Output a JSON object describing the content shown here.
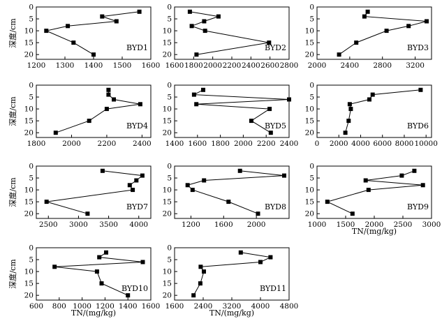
{
  "shared": {
    "ylabel": "深度/cm",
    "xlabel": "TN/(mg/kg)",
    "yticks": [
      0,
      5,
      10,
      15,
      20
    ],
    "ylim": [
      0,
      22
    ],
    "depths": [
      2,
      4,
      6,
      8,
      10,
      15,
      20
    ]
  },
  "chart_data": [
    {
      "type": "line",
      "label": "BYD1",
      "xlim": [
        1200,
        1600
      ],
      "xticks": [
        1200,
        1300,
        1400,
        1500,
        1600
      ],
      "x": [
        1560,
        1430,
        1480,
        1310,
        1235,
        1330,
        1400
      ],
      "y": [
        2,
        4,
        6,
        8,
        10,
        15,
        20
      ]
    },
    {
      "type": "line",
      "label": "BYD2",
      "xlim": [
        1600,
        2800
      ],
      "xticks": [
        1600,
        1800,
        2000,
        2200,
        2400,
        2600,
        2800
      ],
      "x": [
        1760,
        2060,
        1910,
        1780,
        1920,
        2590,
        1830
      ],
      "y": [
        2,
        4,
        6,
        8,
        10,
        15,
        20
      ]
    },
    {
      "type": "line",
      "label": "BYD3",
      "xlim": [
        2000,
        3400
      ],
      "xticks": [
        2000,
        2400,
        2800,
        3200
      ],
      "x": [
        2620,
        2580,
        3340,
        3120,
        2850,
        2480,
        2270
      ],
      "y": [
        2,
        4,
        6,
        8,
        10,
        15,
        20
      ]
    },
    {
      "type": "line",
      "label": "BYD4",
      "xlim": [
        1800,
        2450
      ],
      "xticks": [
        1800,
        2000,
        2200,
        2400
      ],
      "x": [
        2210,
        2210,
        2240,
        2390,
        2200,
        2100,
        1910
      ],
      "y": [
        2,
        4,
        6,
        8,
        10,
        15,
        20
      ]
    },
    {
      "type": "line",
      "label": "BYD5",
      "xlim": [
        1400,
        2400
      ],
      "xticks": [
        1400,
        1600,
        1800,
        2000,
        2200,
        2400
      ],
      "x": [
        1650,
        1570,
        2400,
        1590,
        2230,
        2070,
        2240
      ],
      "y": [
        2,
        4,
        6,
        8,
        10,
        15,
        20
      ]
    },
    {
      "type": "line",
      "label": "BYD6",
      "xlim": [
        0,
        10500
      ],
      "xticks": [
        0,
        2000,
        4000,
        6000,
        8000,
        10000
      ],
      "x": [
        9500,
        5100,
        4800,
        3000,
        3100,
        2900,
        2600
      ],
      "y": [
        2,
        4,
        6,
        8,
        10,
        15,
        20
      ]
    },
    {
      "type": "line",
      "label": "BYD7",
      "xlim": [
        2300,
        4200
      ],
      "xticks": [
        2500,
        3000,
        3500,
        4000
      ],
      "x": [
        3400,
        4060,
        3960,
        3850,
        3900,
        2470,
        3150
      ],
      "y": [
        2,
        4,
        6,
        8,
        10,
        15,
        20
      ]
    },
    {
      "type": "line",
      "label": "BYD8",
      "xlim": [
        1000,
        2400
      ],
      "xticks": [
        1200,
        1600,
        2000
      ],
      "x": [
        1800,
        2340,
        1360,
        1160,
        1220,
        1660,
        2020
      ],
      "y": [
        2,
        4,
        6,
        8,
        10,
        15,
        20
      ]
    },
    {
      "type": "line",
      "label": "BYD9",
      "xlim": [
        1000,
        3000
      ],
      "xticks": [
        1000,
        1500,
        2000,
        2500,
        3000
      ],
      "x": [
        2700,
        2480,
        1850,
        2850,
        1900,
        1180,
        1620
      ],
      "y": [
        2,
        4,
        6,
        8,
        10,
        15,
        20
      ]
    },
    {
      "type": "line",
      "label": "BYD10",
      "xlim": [
        600,
        1600
      ],
      "xticks": [
        600,
        800,
        1000,
        1200,
        1400,
        1600
      ],
      "x": [
        1210,
        1150,
        1530,
        760,
        1130,
        1170,
        1400
      ],
      "y": [
        2,
        4,
        6,
        8,
        10,
        15,
        20
      ]
    },
    {
      "type": "line",
      "label": "BYD11",
      "xlim": [
        1600,
        4800
      ],
      "xticks": [
        1600,
        2400,
        3200,
        4000,
        4800
      ],
      "x": [
        3450,
        4280,
        4000,
        2330,
        2420,
        2320,
        2130
      ],
      "y": [
        2,
        4,
        6,
        8,
        10,
        15,
        20
      ]
    }
  ]
}
